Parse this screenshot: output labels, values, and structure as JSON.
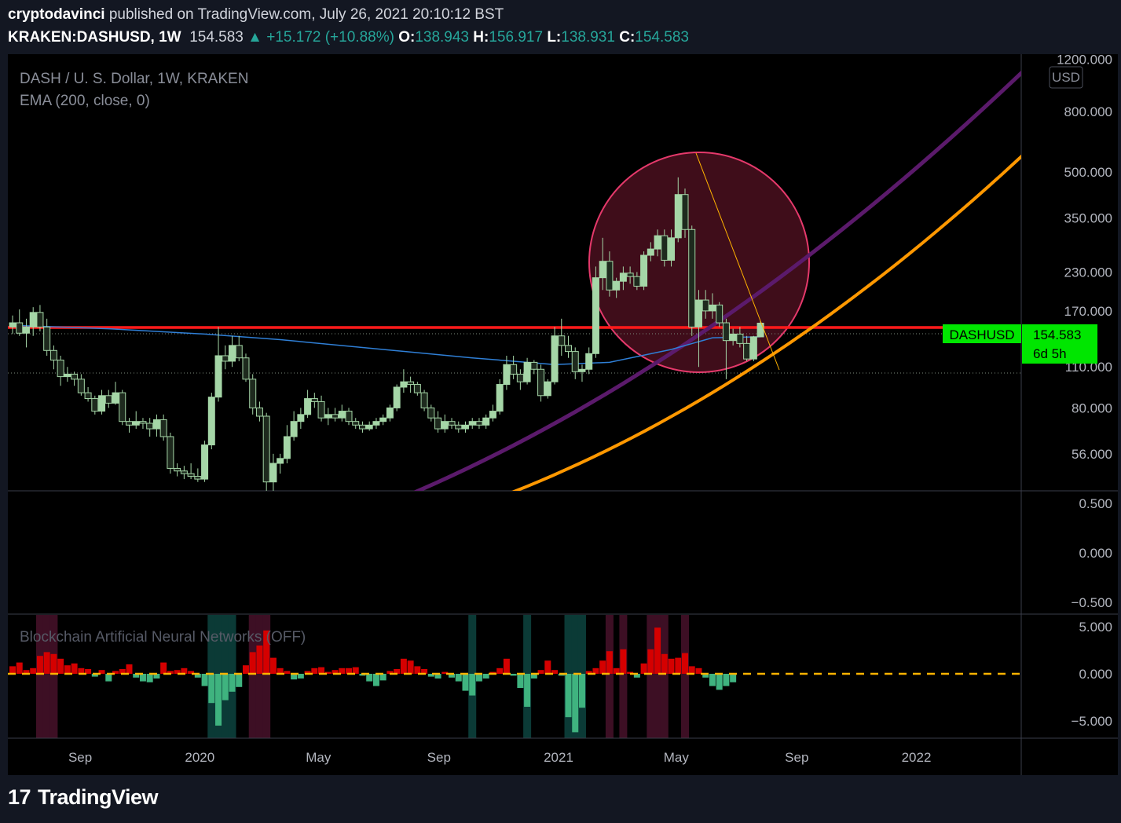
{
  "header": {
    "author": "cryptodavinci",
    "published_text": "published on TradingView.com, July 26, 2021 20:10:12 BST",
    "symbol": "KRAKEN:DASHUSD, 1W",
    "price": "154.583",
    "change": "▲ +15.172 (+10.88%)",
    "open_label": "O:",
    "open": "138.943",
    "high_label": "H:",
    "high": "156.917",
    "low_label": "L:",
    "low": "138.931",
    "close_label": "C:",
    "close": "154.583"
  },
  "legend": {
    "title": "DASH / U. S. Dollar, 1W, KRAKEN",
    "indicator": "EMA (200, close, 0)",
    "currency_button": "USD",
    "bottom_indicator": "Blockchain Artificial Neural Networks (OFF)"
  },
  "price_tag": {
    "symbol": "DASHUSD",
    "price": "154.583",
    "countdown": "6d 5h"
  },
  "colors": {
    "background": "#000000",
    "up": "#a5d6a7",
    "down": "#a5d6a7",
    "ema": "#2f7fd6",
    "resistance": "#ff1a1a",
    "purple_curve": "#5b1a6b",
    "orange_curve": "#ff9800",
    "circle_fill": "#4a0f1f",
    "circle_stroke": "#e5396b",
    "hist_up": "#d50000",
    "hist_down": "#3fb37f",
    "band_red": "#3d0f24",
    "band_teal": "#0b3a36",
    "zero_line": "#ffb300",
    "price_tag": "#00e600"
  },
  "axes": {
    "price_ticks": [
      "1200.000",
      "800.000",
      "500.000",
      "350.000",
      "230.000",
      "170.000",
      "110.000",
      "80.000",
      "56.000"
    ],
    "osc_ticks": [
      "0.500",
      "0.000",
      "−0.500"
    ],
    "hist_ticks": [
      "5.000",
      "0.000",
      "−5.000"
    ],
    "time_ticks": [
      "Sep",
      "2020",
      "May",
      "Sep",
      "2021",
      "May",
      "Sep",
      "2022"
    ]
  },
  "chart_data": {
    "type": "candlestick",
    "title": "DASH / U. S. Dollar, 1W, KRAKEN",
    "scale": "log",
    "y_range": [
      42,
      1250
    ],
    "x_range": [
      "2019-06-24",
      "2022-04-18"
    ],
    "resistance_level": 160,
    "last_price": 154.583,
    "candles": [
      [
        "2019-06-24",
        150,
        164,
        142,
        155
      ],
      [
        "2019-07-01",
        155,
        172,
        140,
        143
      ],
      [
        "2019-07-08",
        143,
        160,
        128,
        150
      ],
      [
        "2019-07-15",
        150,
        175,
        140,
        168
      ],
      [
        "2019-07-22",
        168,
        178,
        145,
        150
      ],
      [
        "2019-07-29",
        150,
        160,
        120,
        125
      ],
      [
        "2019-08-05",
        125,
        130,
        108,
        116
      ],
      [
        "2019-08-12",
        116,
        120,
        95,
        102
      ],
      [
        "2019-08-19",
        102,
        110,
        98,
        104
      ],
      [
        "2019-08-26",
        104,
        106,
        95,
        100
      ],
      [
        "2019-09-02",
        100,
        104,
        88,
        90
      ],
      [
        "2019-09-09",
        90,
        94,
        84,
        86
      ],
      [
        "2019-09-16",
        86,
        88,
        76,
        78
      ],
      [
        "2019-09-23",
        78,
        92,
        76,
        88
      ],
      [
        "2019-09-30",
        88,
        92,
        80,
        83
      ],
      [
        "2019-10-07",
        83,
        98,
        82,
        90
      ],
      [
        "2019-10-14",
        90,
        92,
        70,
        72
      ],
      [
        "2019-10-21",
        72,
        74,
        66,
        70
      ],
      [
        "2019-10-28",
        70,
        78,
        68,
        72
      ],
      [
        "2019-11-04",
        72,
        74,
        68,
        71
      ],
      [
        "2019-11-11",
        71,
        74,
        64,
        68
      ],
      [
        "2019-11-18",
        68,
        76,
        64,
        73
      ],
      [
        "2019-11-25",
        73,
        76,
        62,
        64
      ],
      [
        "2019-12-02",
        64,
        66,
        48,
        50
      ],
      [
        "2019-12-09",
        50,
        52,
        47,
        49
      ],
      [
        "2019-12-16",
        49,
        51,
        46,
        48
      ],
      [
        "2019-12-23",
        48,
        52,
        46,
        47
      ],
      [
        "2019-12-30",
        47,
        50,
        45,
        46
      ],
      [
        "2020-01-06",
        46,
        62,
        45,
        60
      ],
      [
        "2020-01-13",
        60,
        90,
        58,
        87
      ],
      [
        "2020-01-20",
        87,
        150,
        84,
        120
      ],
      [
        "2020-01-27",
        120,
        130,
        108,
        115
      ],
      [
        "2020-02-03",
        115,
        140,
        110,
        130
      ],
      [
        "2020-02-10",
        130,
        140,
        115,
        118
      ],
      [
        "2020-02-17",
        118,
        122,
        98,
        100
      ],
      [
        "2020-02-24",
        100,
        104,
        76,
        80
      ],
      [
        "2020-03-02",
        80,
        84,
        72,
        75
      ],
      [
        "2020-03-09",
        75,
        77,
        40,
        45
      ],
      [
        "2020-03-16",
        45,
        56,
        38,
        52
      ],
      [
        "2020-03-23",
        52,
        56,
        48,
        54
      ],
      [
        "2020-03-30",
        54,
        70,
        52,
        64
      ],
      [
        "2020-04-06",
        64,
        78,
        62,
        72
      ],
      [
        "2020-04-13",
        72,
        80,
        68,
        76
      ],
      [
        "2020-04-20",
        76,
        92,
        74,
        86
      ],
      [
        "2020-04-27",
        86,
        90,
        80,
        84
      ],
      [
        "2020-05-04",
        84,
        88,
        72,
        74
      ],
      [
        "2020-05-11",
        74,
        80,
        70,
        76
      ],
      [
        "2020-05-18",
        76,
        80,
        72,
        74
      ],
      [
        "2020-05-25",
        74,
        82,
        72,
        78
      ],
      [
        "2020-06-01",
        78,
        80,
        70,
        72
      ],
      [
        "2020-06-08",
        72,
        74,
        68,
        70
      ],
      [
        "2020-06-15",
        70,
        72,
        66,
        68
      ],
      [
        "2020-06-22",
        68,
        72,
        67,
        70
      ],
      [
        "2020-06-29",
        70,
        74,
        68,
        72
      ],
      [
        "2020-07-06",
        72,
        76,
        70,
        74
      ],
      [
        "2020-07-13",
        74,
        82,
        72,
        80
      ],
      [
        "2020-07-20",
        80,
        96,
        78,
        94
      ],
      [
        "2020-07-27",
        94,
        108,
        90,
        98
      ],
      [
        "2020-08-03",
        98,
        102,
        90,
        96
      ],
      [
        "2020-08-10",
        96,
        98,
        88,
        90
      ],
      [
        "2020-08-17",
        90,
        92,
        78,
        80
      ],
      [
        "2020-08-24",
        80,
        82,
        72,
        74
      ],
      [
        "2020-08-31",
        74,
        78,
        66,
        68
      ],
      [
        "2020-09-07",
        68,
        76,
        66,
        72
      ],
      [
        "2020-09-14",
        72,
        74,
        68,
        70
      ],
      [
        "2020-09-21",
        70,
        72,
        66,
        68
      ],
      [
        "2020-09-28",
        68,
        72,
        66,
        70
      ],
      [
        "2020-10-05",
        70,
        74,
        68,
        72
      ],
      [
        "2020-10-12",
        72,
        74,
        68,
        70
      ],
      [
        "2020-10-19",
        70,
        76,
        68,
        74
      ],
      [
        "2020-10-26",
        74,
        82,
        72,
        78
      ],
      [
        "2020-11-02",
        78,
        100,
        76,
        96
      ],
      [
        "2020-11-09",
        96,
        120,
        92,
        112
      ],
      [
        "2020-11-16",
        112,
        120,
        100,
        104
      ],
      [
        "2020-11-23",
        104,
        108,
        92,
        98
      ],
      [
        "2020-11-30",
        98,
        118,
        96,
        114
      ],
      [
        "2020-12-07",
        114,
        116,
        104,
        108
      ],
      [
        "2020-12-14",
        108,
        112,
        84,
        88
      ],
      [
        "2020-12-21",
        88,
        100,
        86,
        98
      ],
      [
        "2020-12-28",
        98,
        150,
        96,
        140
      ],
      [
        "2021-01-04",
        140,
        160,
        120,
        130
      ],
      [
        "2021-01-11",
        130,
        140,
        118,
        124
      ],
      [
        "2021-01-18",
        124,
        128,
        100,
        106
      ],
      [
        "2021-01-25",
        106,
        112,
        98,
        108
      ],
      [
        "2021-02-01",
        108,
        128,
        104,
        122
      ],
      [
        "2021-02-08",
        122,
        240,
        118,
        220
      ],
      [
        "2021-02-15",
        220,
        300,
        200,
        250
      ],
      [
        "2021-02-22",
        250,
        270,
        190,
        200
      ],
      [
        "2021-03-01",
        200,
        220,
        188,
        214
      ],
      [
        "2021-03-08",
        214,
        240,
        200,
        228
      ],
      [
        "2021-03-15",
        228,
        240,
        210,
        222
      ],
      [
        "2021-03-22",
        222,
        230,
        200,
        206
      ],
      [
        "2021-03-29",
        206,
        270,
        200,
        262
      ],
      [
        "2021-04-05",
        262,
        290,
        250,
        275
      ],
      [
        "2021-04-12",
        275,
        320,
        260,
        305
      ],
      [
        "2021-04-19",
        305,
        320,
        240,
        252
      ],
      [
        "2021-04-26",
        252,
        320,
        240,
        300
      ],
      [
        "2021-05-03",
        300,
        480,
        290,
        420
      ],
      [
        "2021-05-10",
        420,
        440,
        300,
        320
      ],
      [
        "2021-05-17",
        320,
        330,
        140,
        150
      ],
      [
        "2021-05-24",
        150,
        200,
        110,
        185
      ],
      [
        "2021-05-31",
        185,
        200,
        160,
        170
      ],
      [
        "2021-06-07",
        170,
        195,
        160,
        178
      ],
      [
        "2021-06-14",
        178,
        182,
        150,
        155
      ],
      [
        "2021-06-21",
        155,
        160,
        100,
        135
      ],
      [
        "2021-06-28",
        135,
        148,
        130,
        142
      ],
      [
        "2021-07-05",
        142,
        150,
        128,
        132
      ],
      [
        "2021-07-12",
        132,
        140,
        115,
        117
      ],
      [
        "2021-07-19",
        117,
        140,
        115,
        139
      ],
      [
        "2021-07-26",
        138.943,
        156.917,
        138.931,
        154.583
      ]
    ],
    "ema200": [
      [
        "2019-06-24",
        152
      ],
      [
        "2019-09-30",
        148
      ],
      [
        "2020-01-06",
        142
      ],
      [
        "2020-03-23",
        136
      ],
      [
        "2020-07-06",
        126
      ],
      [
        "2020-10-05",
        118
      ],
      [
        "2020-12-28",
        112
      ],
      [
        "2021-02-22",
        114
      ],
      [
        "2021-04-26",
        126
      ],
      [
        "2021-06-07",
        138
      ],
      [
        "2021-07-26",
        139
      ]
    ],
    "oscillator_range": [
      -0.5,
      0.5
    ],
    "histogram": {
      "name": "Blockchain Artificial Neural Networks (OFF)",
      "y_range": [
        -7,
        5
      ],
      "values": [
        0.8,
        1.2,
        0.4,
        0.6,
        1.9,
        2.3,
        2.1,
        1.6,
        0.9,
        1.1,
        0.6,
        0.5,
        -0.3,
        0.4,
        -0.8,
        0.3,
        0.5,
        1,
        -0.4,
        -0.8,
        -0.9,
        -0.5,
        1.2,
        0.3,
        0.4,
        0.6,
        0.3,
        -0.4,
        -1.3,
        -3.1,
        -5.5,
        -2.8,
        -1.9,
        -1.4,
        0.9,
        2.3,
        3,
        4.6,
        1.7,
        0.6,
        0.3,
        -0.6,
        -0.5,
        0.3,
        0.6,
        0.7,
        0.2,
        0.4,
        0.6,
        0.6,
        0.7,
        -0.2,
        -0.8,
        -1.3,
        -0.7,
        0.3,
        0.5,
        1.6,
        1.4,
        0.8,
        0.5,
        -0.3,
        -0.5,
        0.2,
        -0.4,
        -0.8,
        -1.8,
        -2.3,
        -0.8,
        -0.5,
        0.2,
        0.6,
        1.6,
        -0.2,
        -1.5,
        -3.5,
        -0.5,
        0.4,
        1.4,
        0.4,
        -0.2,
        -4.6,
        -6.2,
        -3.6,
        0.3,
        0.6,
        1.4,
        2.4,
        0.6,
        2.6,
        0.2,
        -0.4,
        1.1,
        2.6,
        4.9,
        2.1,
        1.6,
        1.7,
        2.2,
        0.8,
        0.6,
        -0.4,
        -1.3,
        -1.7,
        -1.3,
        -0.9
      ]
    }
  }
}
